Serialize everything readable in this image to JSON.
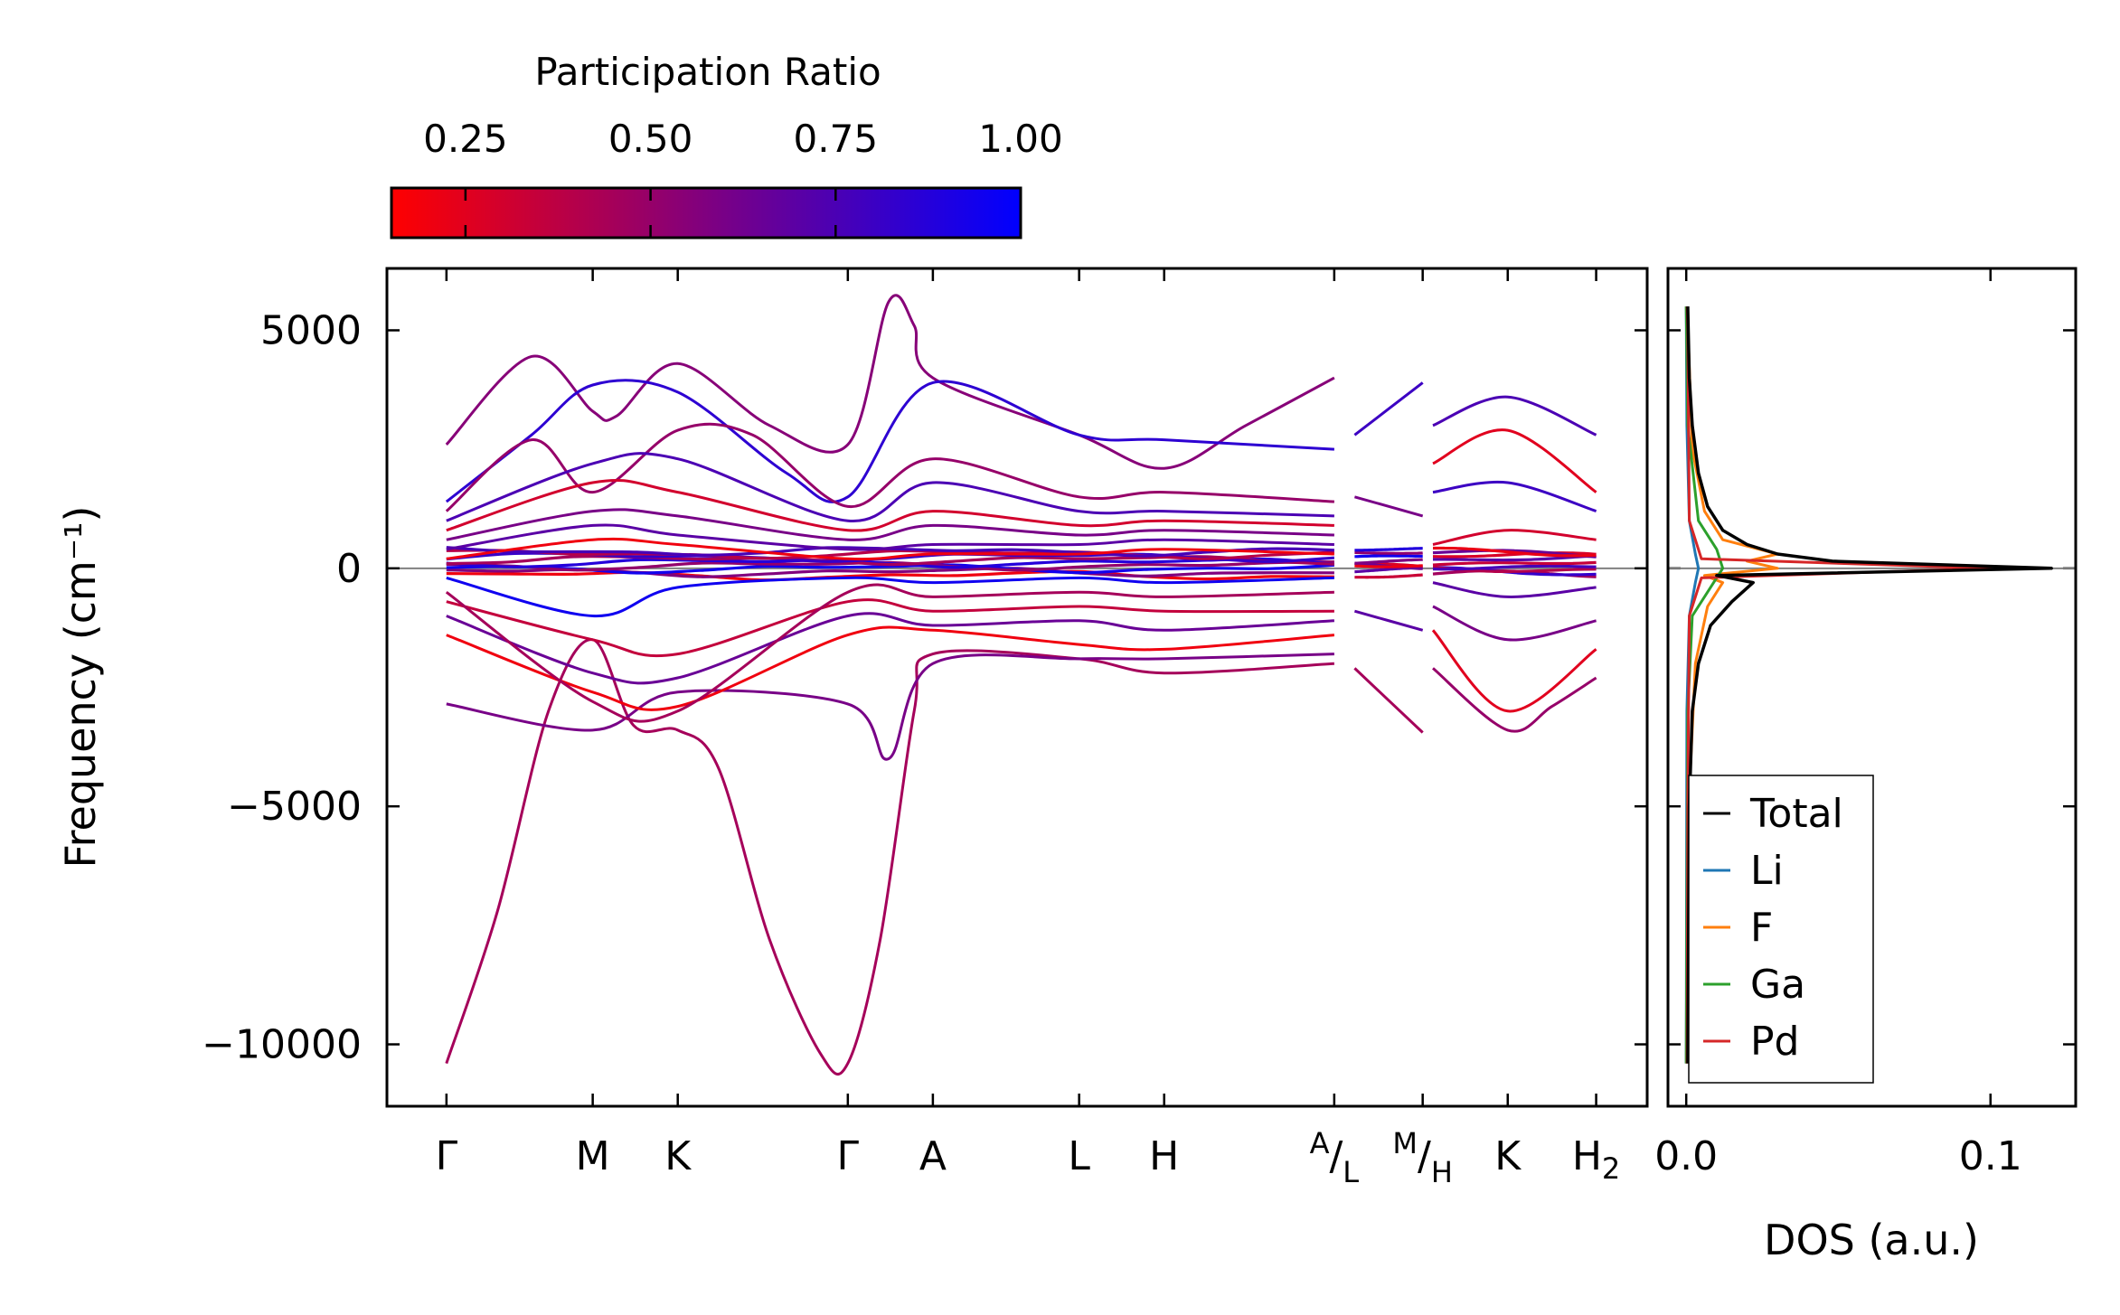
{
  "colors": {
    "low": "#ff0000",
    "high": "#0000ff",
    "total": "#000000",
    "Li": "#1f77b4",
    "F": "#ff7f0e",
    "Ga": "#2ca02c",
    "Pd": "#d62728",
    "zero_line": "#808080"
  },
  "colorbar": {
    "title": "Participation Ratio",
    "range": [
      0.15,
      1.0
    ],
    "ticks": [
      0.25,
      0.5,
      0.75,
      1.0
    ],
    "tick_labels": [
      "0.25",
      "0.50",
      "0.75",
      "1.00"
    ]
  },
  "chart_data": [
    {
      "type": "line",
      "name": "phonon band structure",
      "ylabel": "Frequency (cm⁻¹)",
      "ylim": [
        -11300,
        6300
      ],
      "yticks": [
        5000,
        0,
        -5000,
        -10000
      ],
      "ytick_labels": [
        "5000",
        "0",
        "−5000",
        "−10000"
      ],
      "kpath": [
        {
          "label": "Γ",
          "sup": "",
          "sub": "",
          "x": 0
        },
        {
          "label": "M",
          "sup": "",
          "sub": "",
          "x": 0.86
        },
        {
          "label": "K",
          "sup": "",
          "sub": "",
          "x": 1.36
        },
        {
          "label": "Γ",
          "sup": "",
          "sub": "",
          "x": 2.36
        },
        {
          "label": "A",
          "sup": "",
          "sub": "",
          "x": 2.86
        },
        {
          "label": "L",
          "sup": "",
          "sub": "",
          "x": 3.72
        },
        {
          "label": "H",
          "sup": "",
          "sub": "",
          "x": 4.22
        },
        {
          "label": "/",
          "sup": "A",
          "sub": "L",
          "x": 5.22
        },
        {
          "label": "/",
          "sup": "M",
          "sub": "H",
          "x": 5.74
        },
        {
          "label": "K",
          "sup": "",
          "sub": "",
          "x": 6.24
        },
        {
          "label": "H",
          "sup": "",
          "sub": "2",
          "x": 6.76
        }
      ],
      "segments": [
        [
          0,
          5.22
        ],
        [
          5.34,
          5.74
        ],
        [
          5.8,
          6.76
        ]
      ],
      "xlim": [
        -0.35,
        7.06
      ],
      "bands": [
        {
          "pts": [
            [
              0,
              -10400
            ],
            [
              0.3,
              -7200
            ],
            [
              0.6,
              -3000
            ],
            [
              0.86,
              -1500
            ],
            [
              1.1,
              -3300
            ],
            [
              1.36,
              -3400
            ],
            [
              1.6,
              -4200
            ],
            [
              1.9,
              -7800
            ],
            [
              2.2,
              -10200
            ],
            [
              2.36,
              -10400
            ],
            [
              2.55,
              -7800
            ],
            [
              2.75,
              -3000
            ],
            [
              2.86,
              -1800
            ],
            [
              3.72,
              -1900
            ],
            [
              4.22,
              -2200
            ],
            [
              5.22,
              -2000
            ]
          ],
          "pr": 0.45
        },
        {
          "pts": [
            [
              5.34,
              -2100
            ],
            [
              5.74,
              -3450
            ]
          ],
          "pr": 0.45
        },
        {
          "pts": [
            [
              5.8,
              -2100
            ],
            [
              6.24,
              -3400
            ],
            [
              6.5,
              -2900
            ],
            [
              6.76,
              -2300
            ]
          ],
          "pr": 0.5
        },
        {
          "pts": [
            [
              0,
              -2850
            ],
            [
              0.86,
              -3400
            ],
            [
              1.36,
              -2600
            ],
            [
              2.36,
              -2850
            ],
            [
              2.6,
              -4000
            ],
            [
              2.86,
              -2000
            ],
            [
              3.72,
              -1900
            ],
            [
              4.22,
              -1900
            ],
            [
              5.22,
              -1800
            ]
          ],
          "pr": 0.6
        },
        {
          "pts": [
            [
              0,
              2600
            ],
            [
              0.5,
              4450
            ],
            [
              0.86,
              3300
            ],
            [
              1.0,
              3200
            ],
            [
              1.36,
              4300
            ],
            [
              1.9,
              3000
            ],
            [
              2.36,
              2600
            ],
            [
              2.6,
              5600
            ],
            [
              2.75,
              5100
            ],
            [
              2.86,
              4000
            ],
            [
              3.72,
              2800
            ],
            [
              4.22,
              2100
            ],
            [
              4.7,
              3000
            ],
            [
              5.22,
              4000
            ]
          ],
          "pr": 0.55
        },
        {
          "pts": [
            [
              5.34,
              2800
            ],
            [
              5.74,
              3900
            ]
          ],
          "pr": 0.8
        },
        {
          "pts": [
            [
              5.8,
              3000
            ],
            [
              6.24,
              3600
            ],
            [
              6.76,
              2800
            ]
          ],
          "pr": 0.75
        },
        {
          "pts": [
            [
              0,
              1400
            ],
            [
              0.5,
              2800
            ],
            [
              0.86,
              3850
            ],
            [
              1.36,
              3700
            ],
            [
              2.0,
              2000
            ],
            [
              2.36,
              1500
            ],
            [
              2.86,
              3900
            ],
            [
              3.72,
              2800
            ],
            [
              4.22,
              2700
            ],
            [
              5.22,
              2500
            ]
          ],
          "pr": 0.85
        },
        {
          "pts": [
            [
              0,
              1200
            ],
            [
              0.5,
              2700
            ],
            [
              0.86,
              1600
            ],
            [
              1.36,
              2900
            ],
            [
              1.8,
              2800
            ],
            [
              2.36,
              1300
            ],
            [
              2.86,
              2300
            ],
            [
              3.72,
              1500
            ],
            [
              4.22,
              1600
            ],
            [
              5.22,
              1400
            ]
          ],
          "pr": 0.5
        },
        {
          "pts": [
            [
              0,
              1000
            ],
            [
              0.86,
              2200
            ],
            [
              1.36,
              2300
            ],
            [
              2.36,
              1000
            ],
            [
              2.86,
              1800
            ],
            [
              3.72,
              1200
            ],
            [
              4.22,
              1200
            ],
            [
              5.22,
              1100
            ]
          ],
          "pr": 0.75
        },
        {
          "pts": [
            [
              0,
              800
            ],
            [
              0.86,
              1800
            ],
            [
              1.36,
              1600
            ],
            [
              2.36,
              800
            ],
            [
              2.86,
              1200
            ],
            [
              3.72,
              900
            ],
            [
              4.22,
              1000
            ],
            [
              5.22,
              900
            ]
          ],
          "pr": 0.3
        },
        {
          "pts": [
            [
              0,
              600
            ],
            [
              0.86,
              1200
            ],
            [
              1.36,
              1100
            ],
            [
              2.36,
              600
            ],
            [
              2.86,
              900
            ],
            [
              3.72,
              700
            ],
            [
              4.22,
              800
            ],
            [
              5.22,
              700
            ]
          ],
          "pr": 0.6
        },
        {
          "pts": [
            [
              5.34,
              1500
            ],
            [
              5.74,
              1100
            ]
          ],
          "pr": 0.6
        },
        {
          "pts": [
            [
              5.8,
              2200
            ],
            [
              6.24,
              2900
            ],
            [
              6.76,
              1600
            ]
          ],
          "pr": 0.25
        },
        {
          "pts": [
            [
              5.8,
              1600
            ],
            [
              6.24,
              1800
            ],
            [
              6.76,
              1200
            ]
          ],
          "pr": 0.8
        },
        {
          "pts": [
            [
              0,
              -700
            ],
            [
              0.86,
              -1500
            ],
            [
              1.36,
              -1800
            ],
            [
              2.36,
              -700
            ],
            [
              2.86,
              -900
            ],
            [
              3.72,
              -800
            ],
            [
              4.22,
              -900
            ],
            [
              5.22,
              -900
            ]
          ],
          "pr": 0.35
        },
        {
          "pts": [
            [
              0,
              -1000
            ],
            [
              0.86,
              -2200
            ],
            [
              1.36,
              -2300
            ],
            [
              2.36,
              -1000
            ],
            [
              2.86,
              -1200
            ],
            [
              3.72,
              -1100
            ],
            [
              4.22,
              -1300
            ],
            [
              5.22,
              -1100
            ]
          ],
          "pr": 0.65
        },
        {
          "pts": [
            [
              0,
              -1400
            ],
            [
              0.86,
              -2600
            ],
            [
              1.36,
              -2900
            ],
            [
              2.36,
              -1400
            ],
            [
              2.86,
              -1300
            ],
            [
              3.72,
              -1600
            ],
            [
              4.22,
              -1700
            ],
            [
              5.22,
              -1400
            ]
          ],
          "pr": 0.2
        },
        {
          "pts": [
            [
              0,
              -500
            ],
            [
              0.86,
              -2800
            ],
            [
              1.36,
              -3000
            ],
            [
              2.36,
              -500
            ],
            [
              2.86,
              -600
            ],
            [
              3.72,
              -500
            ],
            [
              4.22,
              -600
            ],
            [
              5.22,
              -500
            ]
          ],
          "pr": 0.45
        },
        {
          "pts": [
            [
              5.34,
              -900
            ],
            [
              5.74,
              -1300
            ]
          ],
          "pr": 0.7
        },
        {
          "pts": [
            [
              5.8,
              -1300
            ],
            [
              6.24,
              -3000
            ],
            [
              6.76,
              -1700
            ]
          ],
          "pr": 0.25
        },
        {
          "pts": [
            [
              5.8,
              -800
            ],
            [
              6.24,
              -1500
            ],
            [
              6.76,
              -1100
            ]
          ],
          "pr": 0.6
        },
        {
          "pts": [
            [
              0,
              -200
            ],
            [
              0.86,
              -1000
            ],
            [
              1.36,
              -400
            ],
            [
              2.36,
              -200
            ],
            [
              2.86,
              -300
            ],
            [
              3.72,
              -200
            ],
            [
              4.22,
              -300
            ],
            [
              5.22,
              -200
            ]
          ],
          "pr": 0.95
        },
        {
          "pts": [
            [
              0,
              200
            ],
            [
              0.86,
              600
            ],
            [
              1.36,
              500
            ],
            [
              2.36,
              200
            ],
            [
              2.86,
              300
            ],
            [
              3.72,
              300
            ],
            [
              4.22,
              400
            ],
            [
              5.22,
              300
            ]
          ],
          "pr": 0.2
        },
        {
          "pts": [
            [
              0,
              400
            ],
            [
              0.86,
              900
            ],
            [
              1.36,
              700
            ],
            [
              2.36,
              400
            ],
            [
              2.86,
              500
            ],
            [
              3.72,
              500
            ],
            [
              4.22,
              600
            ],
            [
              5.22,
              500
            ]
          ],
          "pr": 0.7
        },
        {
          "pts": [
            [
              5.8,
              500
            ],
            [
              6.24,
              800
            ],
            [
              6.76,
              600
            ]
          ],
          "pr": 0.3
        },
        {
          "pts": [
            [
              5.8,
              -300
            ],
            [
              6.24,
              -600
            ],
            [
              6.76,
              -400
            ]
          ],
          "pr": 0.7
        }
      ]
    },
    {
      "type": "line",
      "name": "density of states",
      "xlabel": "DOS (a.u.)",
      "xlim": [
        -0.006,
        0.128
      ],
      "xticks": [
        0.0,
        0.1
      ],
      "xtick_labels": [
        "0.0",
        "0.1"
      ],
      "legend_position": "bottom-left",
      "series": [
        {
          "name": "Total",
          "color_key": "total",
          "freq": [
            -10400,
            -5000,
            -3000,
            -2000,
            -1200,
            -700,
            -300,
            -150,
            0,
            150,
            300,
            500,
            800,
            1300,
            2000,
            3000,
            4000,
            5500
          ],
          "dos": [
            0.0005,
            0.001,
            0.002,
            0.004,
            0.008,
            0.015,
            0.022,
            0.01,
            0.12,
            0.048,
            0.03,
            0.02,
            0.012,
            0.007,
            0.004,
            0.002,
            0.001,
            0.0005
          ]
        },
        {
          "name": "Li",
          "color_key": "Li",
          "freq": [
            -10400,
            -3000,
            -1000,
            -300,
            0,
            300,
            1000,
            3000,
            5500
          ],
          "dos": [
            0.0,
            0.0002,
            0.001,
            0.003,
            0.004,
            0.003,
            0.001,
            0.0002,
            0.0
          ]
        },
        {
          "name": "F",
          "color_key": "F",
          "freq": [
            -10400,
            -5000,
            -2000,
            -800,
            -300,
            -150,
            0,
            150,
            300,
            600,
            1200,
            2500,
            5500
          ],
          "dos": [
            0.0003,
            0.0008,
            0.003,
            0.007,
            0.012,
            0.006,
            0.03,
            0.02,
            0.03,
            0.012,
            0.006,
            0.002,
            0.0003
          ]
        },
        {
          "name": "Ga",
          "color_key": "Ga",
          "freq": [
            -10400,
            -3000,
            -1000,
            -400,
            0,
            400,
            1000,
            3000,
            5500
          ],
          "dos": [
            0.0,
            0.0005,
            0.002,
            0.008,
            0.012,
            0.01,
            0.004,
            0.0005,
            0.0
          ]
        },
        {
          "name": "Pd",
          "color_key": "Pd",
          "freq": [
            -10400,
            -5000,
            -1000,
            -200,
            0,
            200,
            1000,
            5000,
            5500
          ],
          "dos": [
            0.0003,
            0.0005,
            0.001,
            0.005,
            0.1,
            0.005,
            0.001,
            0.0005,
            0.0003
          ]
        }
      ]
    }
  ]
}
